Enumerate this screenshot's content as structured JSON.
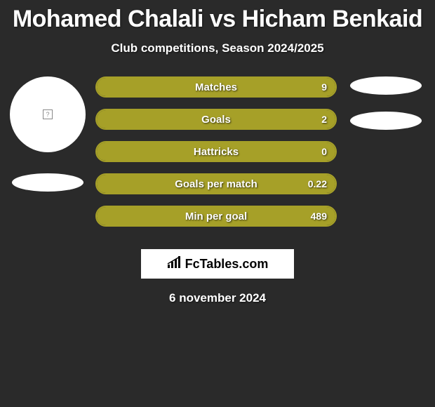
{
  "title": "Mohamed Chalali vs Hicham Benkaid",
  "subtitle": "Club competitions, Season 2024/2025",
  "date": "6 november 2024",
  "logo_text": "FcTables.com",
  "background_color": "#2a2a2a",
  "bar_fill_color": "#a6a028",
  "bar_border_color": "#a6a028",
  "stats": [
    {
      "label": "Matches",
      "value": "9",
      "fill_pct": 100
    },
    {
      "label": "Goals",
      "value": "2",
      "fill_pct": 100
    },
    {
      "label": "Hattricks",
      "value": "0",
      "fill_pct": 100
    },
    {
      "label": "Goals per match",
      "value": "0.22",
      "fill_pct": 100
    },
    {
      "label": "Min per goal",
      "value": "489",
      "fill_pct": 100
    }
  ],
  "left_player": {
    "has_avatar": true,
    "has_ellipse": true
  },
  "right_player": {
    "ellipse_count": 2
  }
}
